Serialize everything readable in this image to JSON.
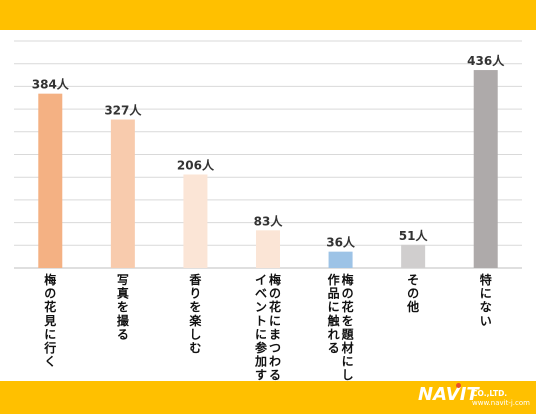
{
  "chart_data": {
    "type": "bar",
    "categories": [
      [
        "梅の花見に行く"
      ],
      [
        "写真を撮る"
      ],
      [
        "香りを楽しむ"
      ],
      [
        "梅の花にまつわる",
        "イベントに参加する"
      ],
      [
        "梅の花を題材にした",
        "作品に触れる"
      ],
      [
        "その他"
      ],
      [
        "特にない"
      ]
    ],
    "values": [
      384,
      327,
      206,
      83,
      36,
      51,
      436
    ],
    "value_labels": [
      "384人",
      "327人",
      "206人",
      "83人",
      "36人",
      "51人",
      "436人"
    ],
    "ylim": [
      0,
      500
    ],
    "grid": true,
    "bar_colors": [
      "#f4b183",
      "#f8cbad",
      "#fbe5d6",
      "#fbe5d6",
      "#9dc3e6",
      "#d0cece",
      "#aeaaaa"
    ]
  },
  "logo": {
    "brand": "NAVIT",
    "company": "CO.,LTD.",
    "url": "www.navit-j.com"
  },
  "colors": {
    "band": "#ffc000",
    "grid": "#d9d9d9"
  }
}
